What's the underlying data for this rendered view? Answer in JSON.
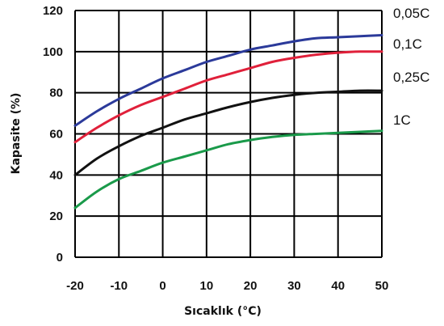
{
  "chart_data": {
    "type": "line",
    "title": "",
    "xlabel": "Sıcaklık (°C)",
    "ylabel": "Kapasite (%)",
    "xlim": [
      -20,
      50
    ],
    "ylim": [
      0,
      120
    ],
    "x_ticks": [
      "-20",
      "-10",
      "0",
      "10",
      "20",
      "30",
      "40",
      "50"
    ],
    "y_ticks": [
      "0",
      "20",
      "40",
      "60",
      "80",
      "100",
      "120"
    ],
    "grid": true,
    "legend": "right, labels at line ends",
    "x": [
      -20,
      -15,
      -10,
      -5,
      0,
      5,
      10,
      15,
      20,
      25,
      30,
      35,
      40,
      45,
      50
    ],
    "series": [
      {
        "name": "0,05C",
        "color": "#2b3a9a",
        "values": [
          64,
          71,
          77,
          82,
          87,
          91,
          95,
          98,
          101,
          103,
          105,
          106.5,
          107,
          107.5,
          108
        ]
      },
      {
        "name": "0,1C",
        "color": "#e0203a",
        "values": [
          56,
          63,
          69,
          74,
          78,
          82,
          86,
          89,
          92,
          95,
          97,
          98.5,
          99.5,
          100,
          100
        ]
      },
      {
        "name": "0,25C",
        "color": "#111111",
        "values": [
          40,
          48,
          54,
          59,
          63,
          67,
          70,
          73,
          75.5,
          77.5,
          79,
          80,
          80.5,
          81,
          81
        ]
      },
      {
        "name": "1C",
        "color": "#1a9a4a",
        "values": [
          24,
          32,
          38,
          42,
          46,
          49,
          52,
          55,
          57,
          58.5,
          59.5,
          60,
          60.5,
          61,
          61.5
        ]
      }
    ]
  }
}
